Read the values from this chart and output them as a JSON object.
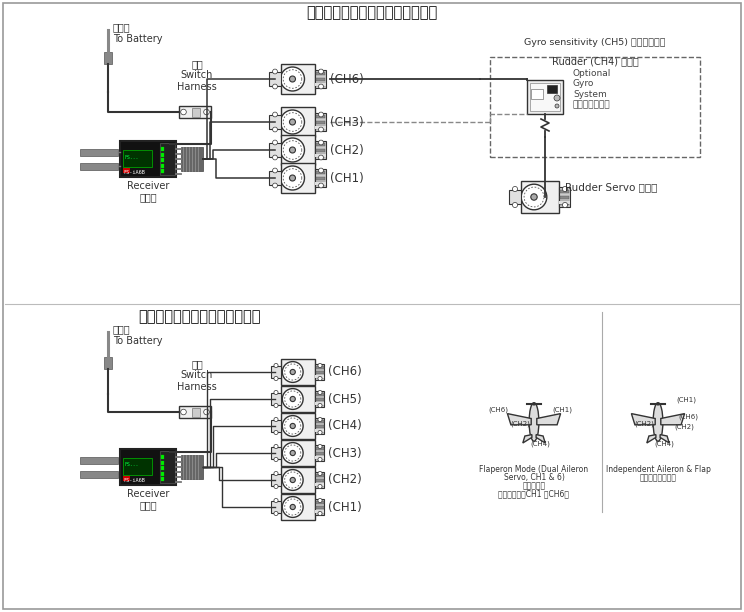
{
  "title_top": "直升机模型的接收机与伺服器连接",
  "title_bottom": "飞机模型的接收机与伺服器连接",
  "bg_color": "#ffffff",
  "line_color": "#333333",
  "receiver_label": "Receiver\n接收机",
  "battery_label": "接电池\nTo Battery",
  "switch_label": "开关\nSwitch\nHarness",
  "gyro_title": "Gyro sensitivity (CH5) 陀螺仪敏感度",
  "gyro_title_en": "Gyro sensitivity (CH5)",
  "gyro_title_cn": "陀螺仪敏感度",
  "gyro_sub_en": "Rudder (CH4)",
  "gyro_sub_cn": "方向舵",
  "gyro_system_label": "Optional\nGyro\nSystem\n可选陀螺仪系统",
  "rudder_servo_label": "Rudder Servo 方向舵",
  "flaperon_line1": "Flaperon Mode (Dual Aileron",
  "flaperon_line2": "Servo, CH1 & 6)",
  "flaperon_line3": "襟副翼模式",
  "flaperon_line4": "（双副翼舵机CH1 和CH6）",
  "independent_line1": "Independent Aileron & Flap",
  "independent_line2": "独立副翼和襟副翼"
}
